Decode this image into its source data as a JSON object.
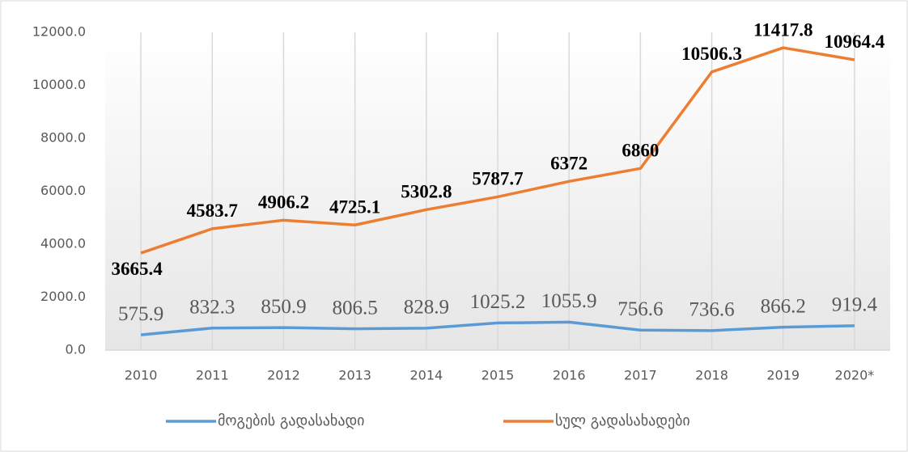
{
  "chart_data": {
    "type": "line",
    "categories": [
      "2010",
      "2011",
      "2012",
      "2013",
      "2014",
      "2015",
      "2016",
      "2017",
      "2018",
      "2019",
      "2020*"
    ],
    "series": [
      {
        "name": "მოგების გადასახადი",
        "color": "#5b9bd5",
        "values": [
          575.9,
          832.3,
          850.9,
          806.5,
          828.9,
          1025.2,
          1055.9,
          756.6,
          736.6,
          866.2,
          919.4
        ]
      },
      {
        "name": "სულ გადასახადები",
        "color": "#ed7d31",
        "values": [
          3665.4,
          4583.7,
          4906.2,
          4725.1,
          5302.8,
          5787.7,
          6372,
          6860,
          10506.3,
          11417.8,
          10964.4
        ]
      }
    ],
    "ylim": [
      0,
      12000
    ],
    "yticks": [
      {
        "value": 0,
        "label": "0.0"
      },
      {
        "value": 2000,
        "label": "2000.0"
      },
      {
        "value": 4000,
        "label": "4000.0"
      },
      {
        "value": 6000,
        "label": "6000.0"
      },
      {
        "value": 8000,
        "label": "8000.0"
      },
      {
        "value": 10000,
        "label": "10000.0"
      },
      {
        "value": 12000,
        "label": "12000.0"
      }
    ],
    "grid": false,
    "legend": "bottom"
  }
}
